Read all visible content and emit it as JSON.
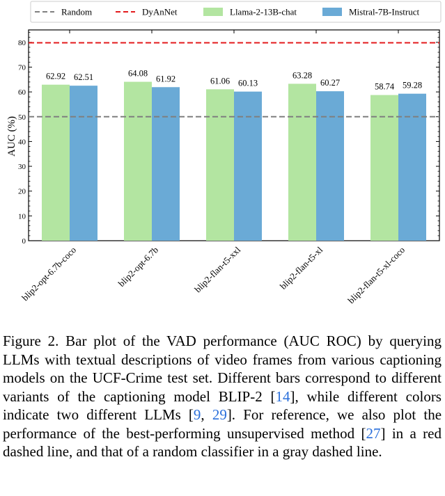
{
  "chart_data": {
    "type": "bar",
    "categories": [
      "blip2-opt-6.7b-coco",
      "blip2-opt-6.7b",
      "blip2-flan-t5-xxl",
      "blip2-flan-t5-xl",
      "blip2-flan-t5-xl-coco"
    ],
    "series": [
      {
        "name": "Llama-2-13B-chat",
        "values": [
          62.92,
          64.08,
          61.06,
          63.28,
          58.74
        ],
        "color": "#b3e5a1"
      },
      {
        "name": "Mistral-7B-Instruct",
        "values": [
          62.51,
          61.92,
          60.13,
          60.27,
          59.28
        ],
        "color": "#6aaad6"
      }
    ],
    "value_labels": {
      "Llama-2-13B-chat": [
        "62.92",
        "64.08",
        "61.06",
        "63.28",
        "58.74"
      ],
      "Mistral-7B-Instruct": [
        "62.51",
        "61.92",
        "60.13",
        "60.27",
        "59.28"
      ]
    },
    "reference_lines": [
      {
        "name": "Random",
        "value": 50,
        "color": "#7f7f7f",
        "style": "dashed"
      },
      {
        "name": "DyAnNet",
        "value": 79.8,
        "color": "#e31a1c",
        "style": "dashed"
      }
    ],
    "ylabel": "AUC (%)",
    "xlabel": "",
    "ylim": [
      0,
      85
    ],
    "yticks": [
      0,
      10,
      20,
      30,
      40,
      50,
      60,
      70,
      80
    ],
    "grid": false,
    "legend_position": "top"
  },
  "caption": {
    "label": "Figure 2.",
    "text_1": "Bar plot of the VAD performance (AUC ROC) by querying LLMs with textual descriptions of video frames from various captioning models on the UCF-Crime test set. Different bars correspond to different variants of the captioning model BLIP-2 [",
    "cite_1": "14",
    "text_2": "], while different colors indicate two different LLMs [",
    "cite_2": "9",
    "text_3": ", ",
    "cite_3": "29",
    "text_4": "]. For reference, we also plot the performance of the best-performing unsupervised method [",
    "cite_4": "27",
    "text_5": "] in a red dashed line, and that of a random classifier in a gray dashed line."
  }
}
